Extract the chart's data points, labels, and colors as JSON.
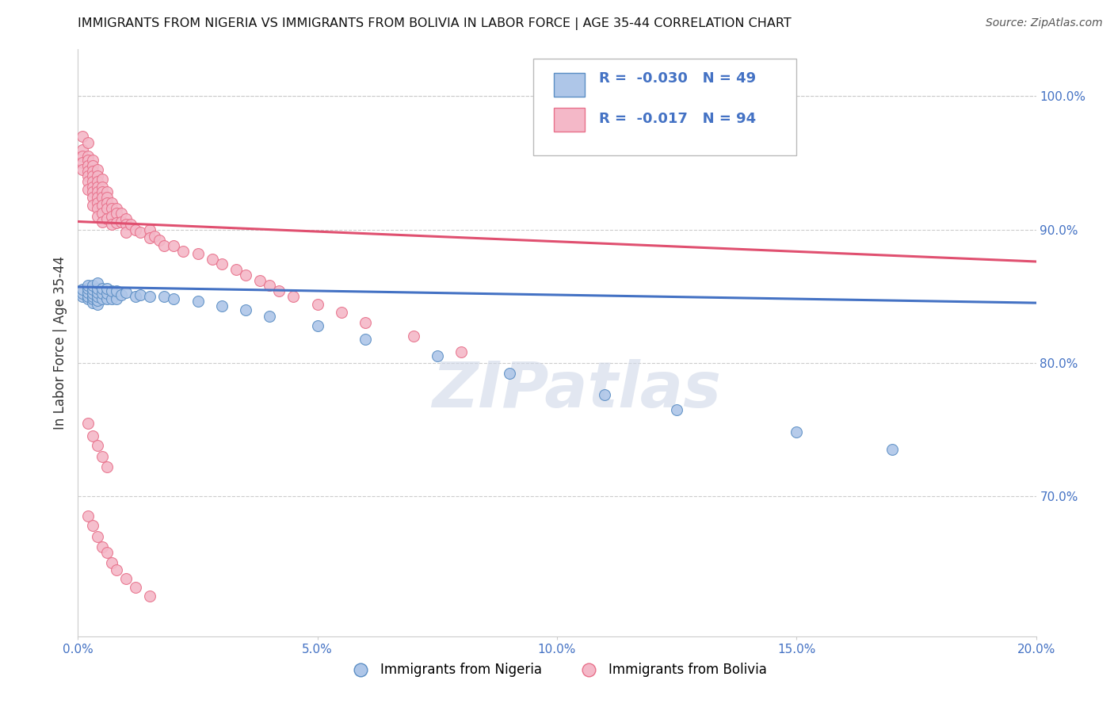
{
  "title": "IMMIGRANTS FROM NIGERIA VS IMMIGRANTS FROM BOLIVIA IN LABOR FORCE | AGE 35-44 CORRELATION CHART",
  "source": "Source: ZipAtlas.com",
  "ylabel": "In Labor Force | Age 35-44",
  "legend_label1": "Immigrants from Nigeria",
  "legend_label2": "Immigrants from Bolivia",
  "R_nigeria": -0.03,
  "N_nigeria": 49,
  "R_bolivia": -0.017,
  "N_bolivia": 94,
  "color_nigeria": "#aec6e8",
  "color_bolivia": "#f4b8c8",
  "edge_color_nigeria": "#5b8ec4",
  "edge_color_bolivia": "#e8708a",
  "line_color_nigeria": "#4472c4",
  "line_color_bolivia": "#e05070",
  "xlim": [
    0.0,
    0.2
  ],
  "ylim": [
    0.595,
    1.035
  ],
  "yticks": [
    0.7,
    0.8,
    0.9,
    1.0
  ],
  "xticks": [
    0.0,
    0.05,
    0.1,
    0.15,
    0.2
  ],
  "nigeria_x": [
    0.001,
    0.001,
    0.001,
    0.002,
    0.002,
    0.002,
    0.002,
    0.002,
    0.003,
    0.003,
    0.003,
    0.003,
    0.003,
    0.003,
    0.004,
    0.004,
    0.004,
    0.004,
    0.004,
    0.004,
    0.005,
    0.005,
    0.005,
    0.006,
    0.006,
    0.006,
    0.007,
    0.007,
    0.008,
    0.008,
    0.009,
    0.01,
    0.012,
    0.013,
    0.015,
    0.018,
    0.02,
    0.025,
    0.03,
    0.035,
    0.04,
    0.05,
    0.06,
    0.075,
    0.09,
    0.11,
    0.125,
    0.15,
    0.17
  ],
  "nigeria_y": [
    0.85,
    0.852,
    0.855,
    0.848,
    0.85,
    0.853,
    0.856,
    0.858,
    0.845,
    0.848,
    0.85,
    0.852,
    0.855,
    0.858,
    0.844,
    0.847,
    0.85,
    0.853,
    0.856,
    0.86,
    0.848,
    0.852,
    0.856,
    0.848,
    0.852,
    0.856,
    0.848,
    0.854,
    0.848,
    0.854,
    0.851,
    0.853,
    0.85,
    0.851,
    0.85,
    0.85,
    0.848,
    0.846,
    0.843,
    0.84,
    0.835,
    0.828,
    0.818,
    0.805,
    0.792,
    0.776,
    0.765,
    0.748,
    0.735
  ],
  "bolivia_x": [
    0.001,
    0.001,
    0.001,
    0.001,
    0.001,
    0.002,
    0.002,
    0.002,
    0.002,
    0.002,
    0.002,
    0.002,
    0.002,
    0.003,
    0.003,
    0.003,
    0.003,
    0.003,
    0.003,
    0.003,
    0.003,
    0.003,
    0.004,
    0.004,
    0.004,
    0.004,
    0.004,
    0.004,
    0.004,
    0.004,
    0.004,
    0.005,
    0.005,
    0.005,
    0.005,
    0.005,
    0.005,
    0.005,
    0.006,
    0.006,
    0.006,
    0.006,
    0.006,
    0.007,
    0.007,
    0.007,
    0.007,
    0.008,
    0.008,
    0.008,
    0.009,
    0.009,
    0.01,
    0.01,
    0.01,
    0.011,
    0.012,
    0.013,
    0.015,
    0.015,
    0.016,
    0.017,
    0.018,
    0.02,
    0.022,
    0.025,
    0.028,
    0.03,
    0.033,
    0.035,
    0.038,
    0.04,
    0.042,
    0.045,
    0.05,
    0.055,
    0.06,
    0.07,
    0.08,
    0.002,
    0.003,
    0.004,
    0.005,
    0.006,
    0.002,
    0.003,
    0.004,
    0.005,
    0.006,
    0.007,
    0.008,
    0.01,
    0.012,
    0.015
  ],
  "bolivia_y": [
    0.97,
    0.96,
    0.955,
    0.95,
    0.945,
    0.965,
    0.955,
    0.952,
    0.948,
    0.944,
    0.94,
    0.936,
    0.93,
    0.952,
    0.948,
    0.944,
    0.94,
    0.936,
    0.932,
    0.928,
    0.924,
    0.918,
    0.945,
    0.94,
    0.936,
    0.932,
    0.928,
    0.924,
    0.92,
    0.916,
    0.91,
    0.938,
    0.932,
    0.928,
    0.924,
    0.918,
    0.912,
    0.906,
    0.928,
    0.924,
    0.92,
    0.916,
    0.908,
    0.92,
    0.916,
    0.91,
    0.904,
    0.916,
    0.912,
    0.905,
    0.912,
    0.906,
    0.908,
    0.904,
    0.898,
    0.904,
    0.9,
    0.898,
    0.9,
    0.894,
    0.895,
    0.892,
    0.888,
    0.888,
    0.884,
    0.882,
    0.878,
    0.874,
    0.87,
    0.866,
    0.862,
    0.858,
    0.854,
    0.85,
    0.844,
    0.838,
    0.83,
    0.82,
    0.808,
    0.755,
    0.745,
    0.738,
    0.73,
    0.722,
    0.685,
    0.678,
    0.67,
    0.662,
    0.658,
    0.65,
    0.645,
    0.638,
    0.632,
    0.625
  ],
  "nig_trend_y0": 0.857,
  "nig_trend_y1": 0.845,
  "bol_trend_y0": 0.906,
  "bol_trend_y1": 0.876,
  "watermark": "ZIPatlas",
  "title_fontsize": 11.5,
  "source_fontsize": 10,
  "tick_fontsize": 11,
  "ylabel_fontsize": 12,
  "legend_fontsize": 13,
  "watermark_fontsize": 58,
  "marker_size": 100
}
